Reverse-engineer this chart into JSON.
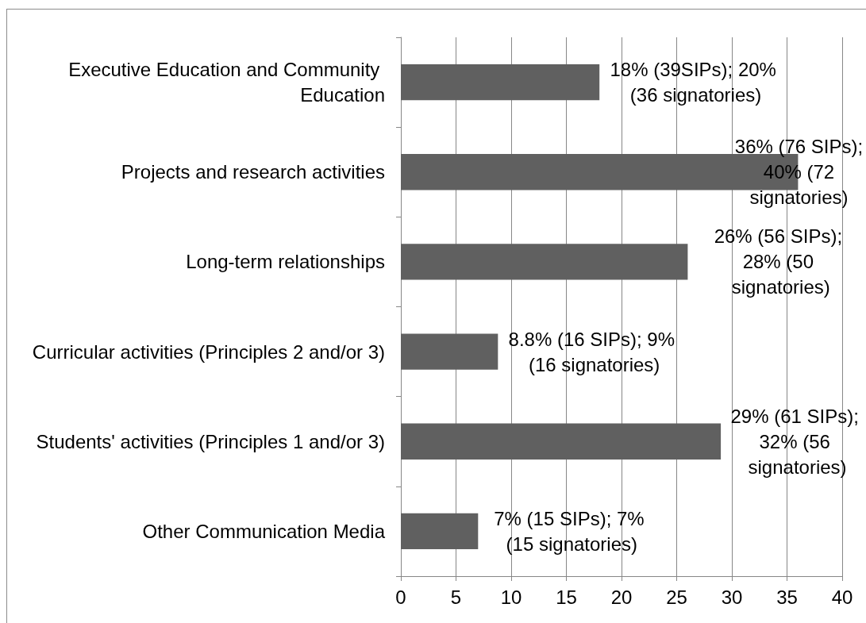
{
  "chart_data": {
    "type": "bar",
    "orientation": "horizontal",
    "categories": [
      "Executive Education and Community Education",
      "Projects and research activities",
      "Long-term relationships",
      "Curricular activities (Principles 2 and/or 3)",
      "Students' activities (Principles 1 and/or 3)",
      "Other Communication Media"
    ],
    "values": [
      18,
      36,
      26,
      8.8,
      29,
      7
    ],
    "value_labels": [
      "18% (39SIPs); 20% (36 signatories)",
      "36% (76 SIPs); 40% (72 signatories)",
      "26% (56 SIPs); 28% (50 signatories)",
      "8.8% (16 SIPs); 9% (16 signatories)",
      "29% (61 SIPs); 32% (56 signatories)",
      "7% (15 SIPs); 7% (15 signatories)"
    ],
    "color": "#606060",
    "xlim": [
      0,
      40
    ],
    "xticks": [
      0,
      5,
      10,
      15,
      20,
      25,
      30,
      35,
      40
    ],
    "grid": "x"
  }
}
